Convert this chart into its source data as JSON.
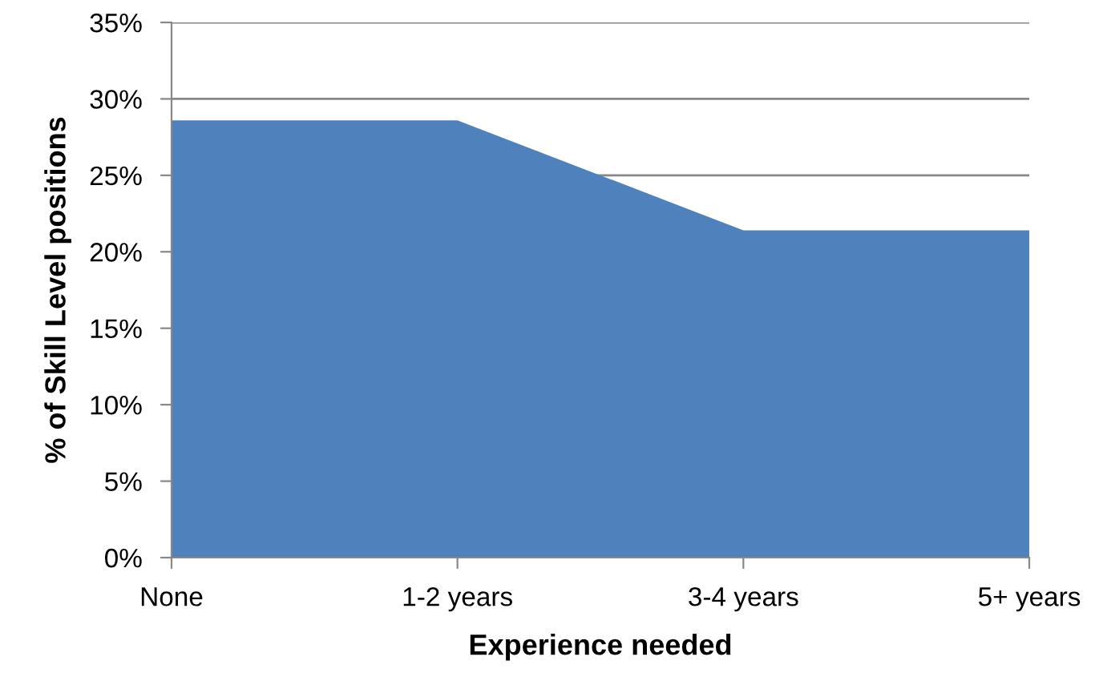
{
  "chart_data": {
    "type": "area",
    "xlabel": "Experience needed",
    "ylabel": "% of Skill Level positions",
    "categories": [
      "None",
      "1-2 years",
      "3-4 years",
      "5+ years"
    ],
    "series": [
      {
        "color": "#4f81bd",
        "values": [
          28.6,
          28.6,
          21.4,
          21.4
        ]
      }
    ],
    "ylim": [
      0,
      35
    ],
    "yticks": [
      {
        "value": 0,
        "label": "0%"
      },
      {
        "value": 5,
        "label": "5%"
      },
      {
        "value": 10,
        "label": "10%"
      },
      {
        "value": 15,
        "label": "15%"
      },
      {
        "value": 20,
        "label": "20%"
      },
      {
        "value": 25,
        "label": "25%"
      },
      {
        "value": 30,
        "label": "30%"
      },
      {
        "value": 35,
        "label": "35%"
      }
    ],
    "grid": "y",
    "legend": false
  }
}
